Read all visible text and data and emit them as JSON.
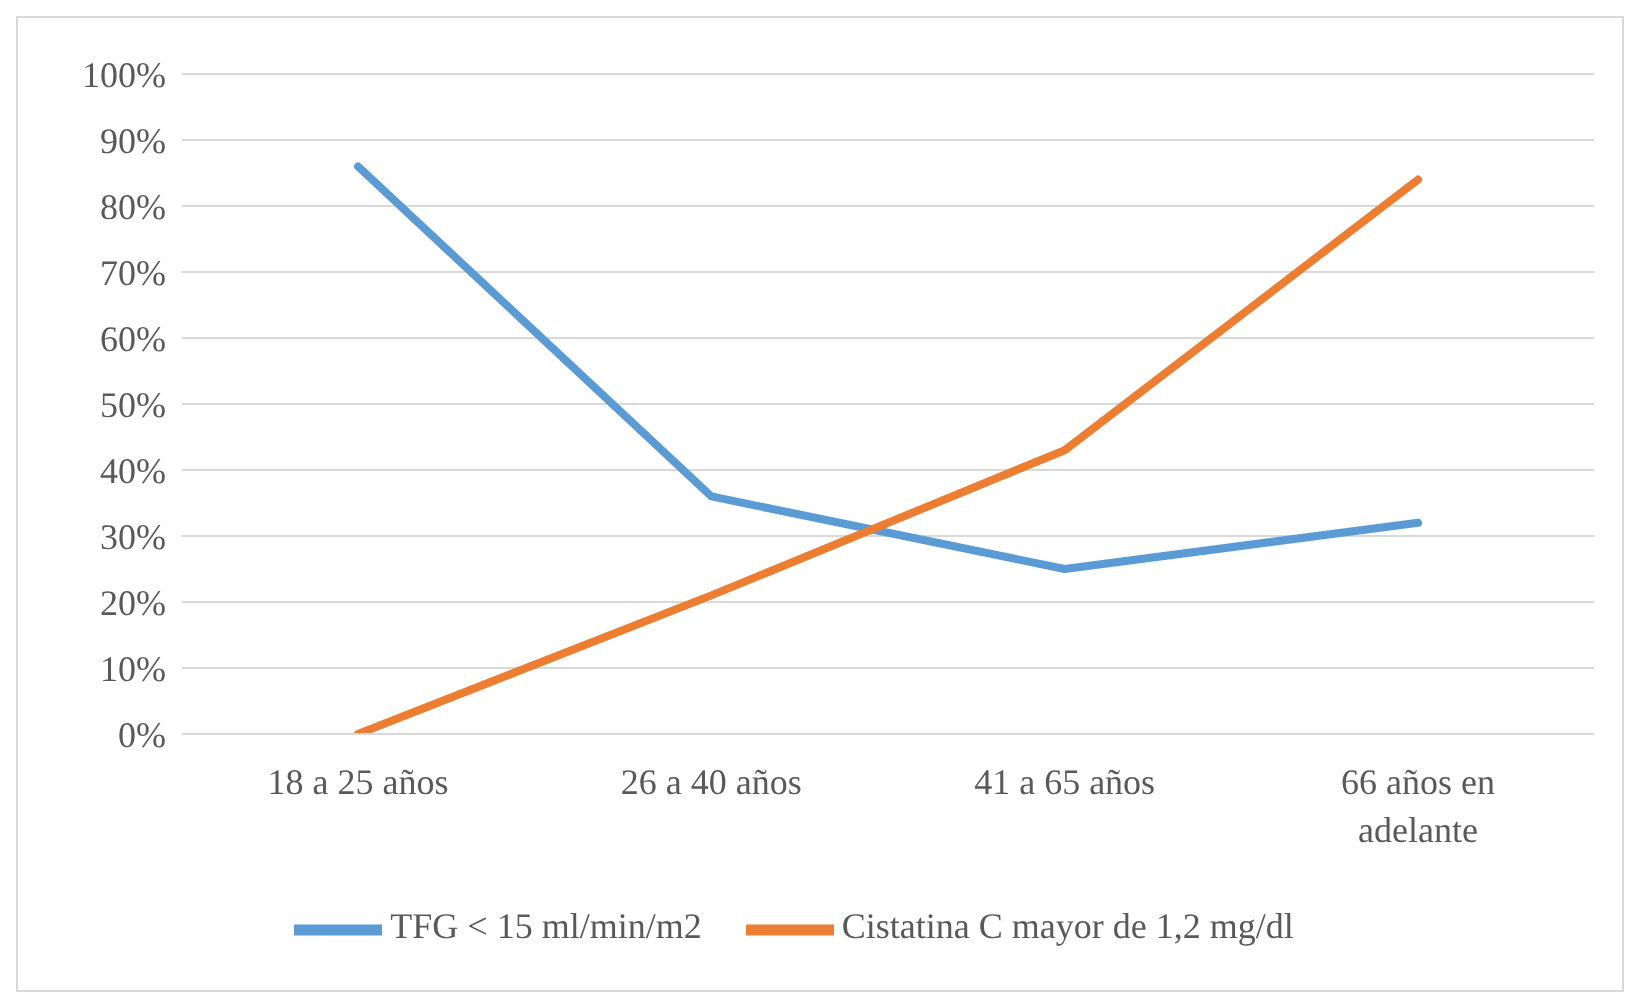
{
  "chart_data": {
    "type": "line",
    "categories": [
      "18 a 25 años",
      "26 a 40 años",
      "41 a 65 años",
      "66 años en adelante"
    ],
    "series": [
      {
        "name": "TFG < 15 ml/min/m2",
        "color": "#5b9bd5",
        "values": [
          86,
          36,
          25,
          32
        ]
      },
      {
        "name": "Cistatina C mayor de 1,2 mg/dl",
        "color": "#ed7d31",
        "values": [
          0,
          21,
          43,
          84
        ]
      }
    ],
    "ylim": [
      0,
      100
    ],
    "yticks": [
      {
        "value": 0,
        "label": "0%"
      },
      {
        "value": 10,
        "label": "10%"
      },
      {
        "value": 20,
        "label": "20%"
      },
      {
        "value": 30,
        "label": "30%"
      },
      {
        "value": 40,
        "label": "40%"
      },
      {
        "value": 50,
        "label": "50%"
      },
      {
        "value": 60,
        "label": "60%"
      },
      {
        "value": 70,
        "label": "70%"
      },
      {
        "value": 80,
        "label": "80%"
      },
      {
        "value": 90,
        "label": "90%"
      },
      {
        "value": 100,
        "label": "100%"
      }
    ],
    "grid": "y",
    "legend": "bottom",
    "marker": "none",
    "line_style": "solid"
  }
}
